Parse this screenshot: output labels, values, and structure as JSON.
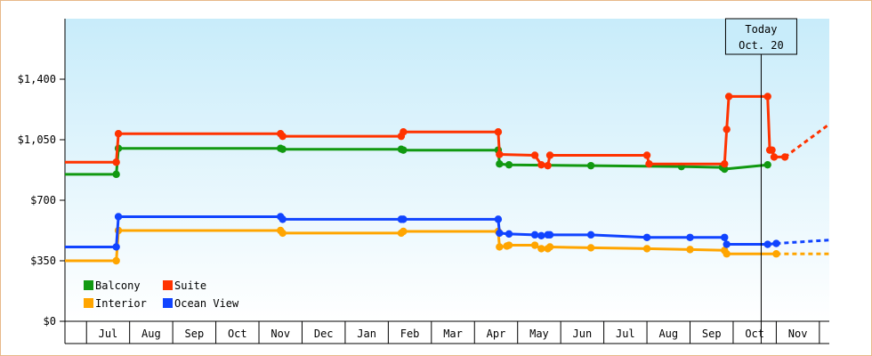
{
  "chart_data": {
    "type": "line",
    "title": "",
    "xlabel": "",
    "ylabel": "",
    "ylim": [
      0,
      1750
    ],
    "yticks": [
      {
        "value": 0,
        "label": "$0"
      },
      {
        "value": 350,
        "label": "$350"
      },
      {
        "value": 700,
        "label": "$700"
      },
      {
        "value": 1050,
        "label": "$1,050"
      },
      {
        "value": 1400,
        "label": "$1,400"
      }
    ],
    "months": [
      "Jul",
      "Aug",
      "Sep",
      "Oct",
      "Nov",
      "Dec",
      "Jan",
      "Feb",
      "Mar",
      "Apr",
      "May",
      "Jun",
      "Jul",
      "Aug",
      "Sep",
      "Oct",
      "Nov"
    ],
    "x_unit": "months from start of June (year 1)",
    "xlim": [
      0.5,
      18.23
    ],
    "today": {
      "label_line1": "Today",
      "label_line2": "Oct. 20",
      "x": 16.65
    },
    "grid": false,
    "legend_position": "bottom-left",
    "background": "light blue gradient",
    "series": [
      {
        "name": "Balcony",
        "color": "#119911",
        "points": [
          [
            0.5,
            850
          ],
          [
            1.69,
            850
          ],
          [
            1.74,
            1000
          ],
          [
            5.5,
            1000
          ],
          [
            5.55,
            995
          ],
          [
            8.3,
            995
          ],
          [
            8.35,
            990
          ],
          [
            10.55,
            990
          ],
          [
            10.58,
            910
          ],
          [
            10.8,
            905
          ],
          [
            12.7,
            900
          ],
          [
            14.8,
            895
          ],
          [
            15.75,
            890
          ],
          [
            15.8,
            880
          ],
          [
            16.8,
            905
          ]
        ],
        "projection": []
      },
      {
        "name": "Suite",
        "color": "#ff3300",
        "points": [
          [
            0.5,
            920
          ],
          [
            1.69,
            920
          ],
          [
            1.74,
            1085
          ],
          [
            5.5,
            1085
          ],
          [
            5.55,
            1070
          ],
          [
            8.3,
            1070
          ],
          [
            8.35,
            1095
          ],
          [
            10.55,
            1095
          ],
          [
            10.58,
            965
          ],
          [
            11.4,
            960
          ],
          [
            11.55,
            905
          ],
          [
            11.7,
            900
          ],
          [
            11.75,
            960
          ],
          [
            14.0,
            960
          ],
          [
            14.05,
            910
          ],
          [
            15.8,
            910
          ],
          [
            15.85,
            1110
          ],
          [
            15.9,
            1300
          ],
          [
            16.8,
            1300
          ],
          [
            16.85,
            990
          ],
          [
            16.9,
            990
          ],
          [
            16.95,
            950
          ],
          [
            17.2,
            950
          ]
        ],
        "projection": [
          [
            17.2,
            950
          ],
          [
            18.23,
            1140
          ]
        ]
      },
      {
        "name": "Interior",
        "color": "#ffa500",
        "points": [
          [
            0.5,
            350
          ],
          [
            1.69,
            350
          ],
          [
            1.74,
            525
          ],
          [
            5.5,
            525
          ],
          [
            5.55,
            510
          ],
          [
            8.3,
            510
          ],
          [
            8.35,
            520
          ],
          [
            10.55,
            520
          ],
          [
            10.58,
            430
          ],
          [
            10.75,
            435
          ],
          [
            10.8,
            440
          ],
          [
            11.4,
            440
          ],
          [
            11.55,
            420
          ],
          [
            11.7,
            420
          ],
          [
            11.75,
            430
          ],
          [
            12.7,
            425
          ],
          [
            14.0,
            420
          ],
          [
            15.0,
            415
          ],
          [
            15.8,
            410
          ],
          [
            15.85,
            390
          ],
          [
            17.0,
            390
          ]
        ],
        "projection": [
          [
            17.0,
            390
          ],
          [
            18.23,
            390
          ]
        ]
      },
      {
        "name": "Ocean View",
        "color": "#1144ff",
        "points": [
          [
            0.5,
            430
          ],
          [
            1.69,
            430
          ],
          [
            1.74,
            605
          ],
          [
            5.5,
            605
          ],
          [
            5.55,
            590
          ],
          [
            8.3,
            590
          ],
          [
            8.35,
            590
          ],
          [
            10.55,
            590
          ],
          [
            10.58,
            510
          ],
          [
            10.8,
            505
          ],
          [
            11.4,
            500
          ],
          [
            11.55,
            495
          ],
          [
            11.7,
            500
          ],
          [
            11.75,
            500
          ],
          [
            12.7,
            500
          ],
          [
            14.0,
            485
          ],
          [
            15.0,
            485
          ],
          [
            15.8,
            485
          ],
          [
            15.85,
            445
          ],
          [
            16.8,
            445
          ],
          [
            17.0,
            450
          ]
        ],
        "projection": [
          [
            17.0,
            450
          ],
          [
            18.23,
            470
          ]
        ]
      }
    ]
  }
}
